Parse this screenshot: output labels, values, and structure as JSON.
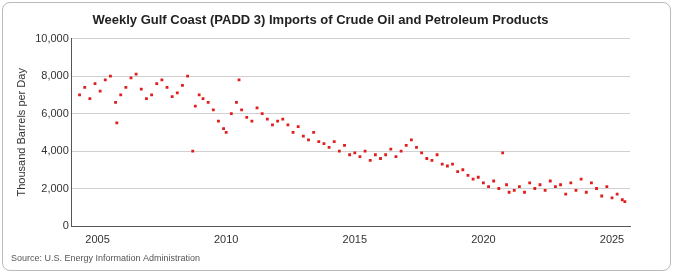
{
  "chart_data": {
    "type": "scatter",
    "title": "Weekly Gulf Coast (PADD 3) Imports of Crude Oil and Petroleum Products",
    "y_label": "Thousand Barrels per Day",
    "source": "Source: U.S. Energy Information Administration",
    "color": "#e01e1e",
    "marker": "square",
    "grid": true,
    "xlim": [
      2004.0,
      2025.7
    ],
    "xticks": [
      2005,
      2010,
      2015,
      2020,
      2025
    ],
    "ylim": [
      0,
      10000
    ],
    "yticks": [
      0,
      {
        "value": 2000,
        "label": "2,000"
      },
      {
        "value": 4000,
        "label": "4,000"
      },
      {
        "value": 6000,
        "label": "6,000"
      },
      {
        "value": 8000,
        "label": "8,000"
      },
      {
        "value": 10000,
        "label": "10,000"
      }
    ],
    "x": [
      2004.3,
      2004.5,
      2004.7,
      2004.9,
      2005.1,
      2005.3,
      2005.5,
      2005.7,
      2005.75,
      2005.9,
      2006.1,
      2006.3,
      2006.5,
      2006.7,
      2006.9,
      2007.1,
      2007.3,
      2007.5,
      2007.7,
      2007.9,
      2008.1,
      2008.3,
      2008.5,
      2008.7,
      2008.8,
      2008.95,
      2009.1,
      2009.3,
      2009.5,
      2009.7,
      2009.9,
      2010.0,
      2010.2,
      2010.4,
      2010.5,
      2010.6,
      2010.8,
      2011.0,
      2011.2,
      2011.4,
      2011.6,
      2011.8,
      2012.0,
      2012.2,
      2012.4,
      2012.6,
      2012.8,
      2013.0,
      2013.2,
      2013.4,
      2013.6,
      2013.8,
      2014.0,
      2014.2,
      2014.4,
      2014.6,
      2014.8,
      2015.0,
      2015.2,
      2015.4,
      2015.6,
      2015.8,
      2016.0,
      2016.2,
      2016.4,
      2016.6,
      2016.8,
      2017.0,
      2017.2,
      2017.4,
      2017.6,
      2017.8,
      2018.0,
      2018.2,
      2018.4,
      2018.6,
      2018.8,
      2019.0,
      2019.2,
      2019.4,
      2019.6,
      2019.8,
      2020.0,
      2020.2,
      2020.4,
      2020.6,
      2020.75,
      2020.9,
      2021.0,
      2021.2,
      2021.4,
      2021.6,
      2021.8,
      2022.0,
      2022.2,
      2022.4,
      2022.6,
      2022.8,
      2023.0,
      2023.2,
      2023.4,
      2023.6,
      2023.8,
      2024.0,
      2024.2,
      2024.4,
      2024.6,
      2024.8,
      2025.0,
      2025.2,
      2025.4,
      2025.5
    ],
    "values": [
      7000,
      7400,
      6800,
      7600,
      7200,
      7800,
      8000,
      6600,
      5500,
      7000,
      7400,
      7900,
      8100,
      7300,
      6800,
      7000,
      7600,
      7800,
      7400,
      6900,
      7100,
      7500,
      8000,
      4000,
      6400,
      7000,
      6800,
      6600,
      6200,
      5600,
      5200,
      5000,
      6000,
      6600,
      7800,
      6200,
      5800,
      5600,
      6300,
      6000,
      5700,
      5400,
      5600,
      5700,
      5400,
      5000,
      5300,
      4800,
      4600,
      5000,
      4500,
      4400,
      4200,
      4500,
      4000,
      4300,
      3800,
      3900,
      3700,
      4000,
      3500,
      3800,
      3600,
      3800,
      4100,
      3700,
      4000,
      4300,
      4600,
      4200,
      3900,
      3600,
      3500,
      3800,
      3300,
      3200,
      3300,
      2900,
      3000,
      2700,
      2500,
      2600,
      2300,
      2100,
      2400,
      2000,
      3900,
      2200,
      1800,
      1900,
      2100,
      1800,
      2300,
      2000,
      2200,
      1900,
      2400,
      2100,
      2200,
      1700,
      2300,
      1900,
      2500,
      1800,
      2300,
      2000,
      1600,
      2100,
      1500,
      1700,
      1400,
      1300
    ]
  }
}
